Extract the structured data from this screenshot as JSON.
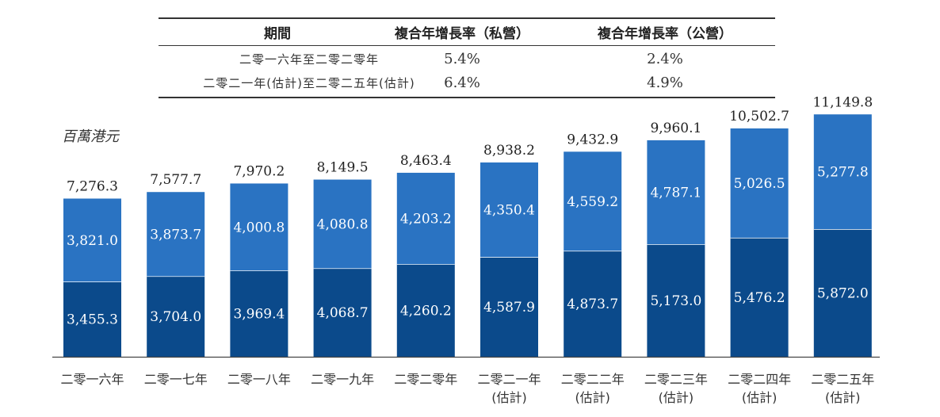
{
  "cagr_table": {
    "headers": [
      "期間",
      "複合年增長率（私營）",
      "複合年增長率（公營）"
    ],
    "rows": [
      [
        "二零一六年至二零二零年",
        "5.4%",
        "2.4%"
      ],
      [
        "二零二一年(估計)至二零二五年(估計)",
        "6.4%",
        "4.9%"
      ]
    ]
  },
  "unit_label": "百萬港元",
  "colors": {
    "private": "#2a73c2",
    "public": "#0b4a8b",
    "value_text": "#ffffff",
    "axis": "#444444"
  },
  "chart_data": {
    "type": "bar",
    "stacked": true,
    "categories": [
      [
        "二零一六年"
      ],
      [
        "二零一七年"
      ],
      [
        "二零一八年"
      ],
      [
        "二零一九年"
      ],
      [
        "二零二零年"
      ],
      [
        "二零二一年",
        "(估計)"
      ],
      [
        "二零二二年",
        "(估計)"
      ],
      [
        "二零二三年",
        "(估計)"
      ],
      [
        "二零二四年",
        "(估計)"
      ],
      [
        "二零二五年",
        "(估計)"
      ]
    ],
    "series": [
      {
        "values": [
          3455.3,
          3704.0,
          3969.4,
          4068.7,
          4260.2,
          4587.9,
          4873.7,
          5173.0,
          5476.2,
          5872.0
        ],
        "labels": [
          "3,455.3",
          "3,704.0",
          "3,969.4",
          "4,068.7",
          "4,260.2",
          "4,587.9",
          "4,873.7",
          "5,173.0",
          "5,476.2",
          "5,872.0"
        ]
      },
      {
        "values": [
          3821.0,
          3873.7,
          4000.8,
          4080.8,
          4203.2,
          4350.4,
          4559.2,
          4787.1,
          5026.5,
          5277.8
        ],
        "labels": [
          "3,821.0",
          "3,873.7",
          "4,000.8",
          "4,080.8",
          "4,203.2",
          "4,350.4",
          "4,559.2",
          "4,787.1",
          "5,026.5",
          "5,277.8"
        ]
      }
    ],
    "totals": [
      7276.3,
      7577.7,
      7970.2,
      8149.5,
      8463.4,
      8938.2,
      9432.9,
      9960.1,
      10502.7,
      11149.8
    ],
    "total_labels": [
      "7,276.3",
      "7,577.7",
      "7,970.2",
      "8,149.5",
      "8,463.4",
      "8,938.2",
      "9,432.9",
      "9,960.1",
      "10,502.7",
      "11,149.8"
    ],
    "ylim": [
      0,
      12000
    ],
    "grid": false
  }
}
